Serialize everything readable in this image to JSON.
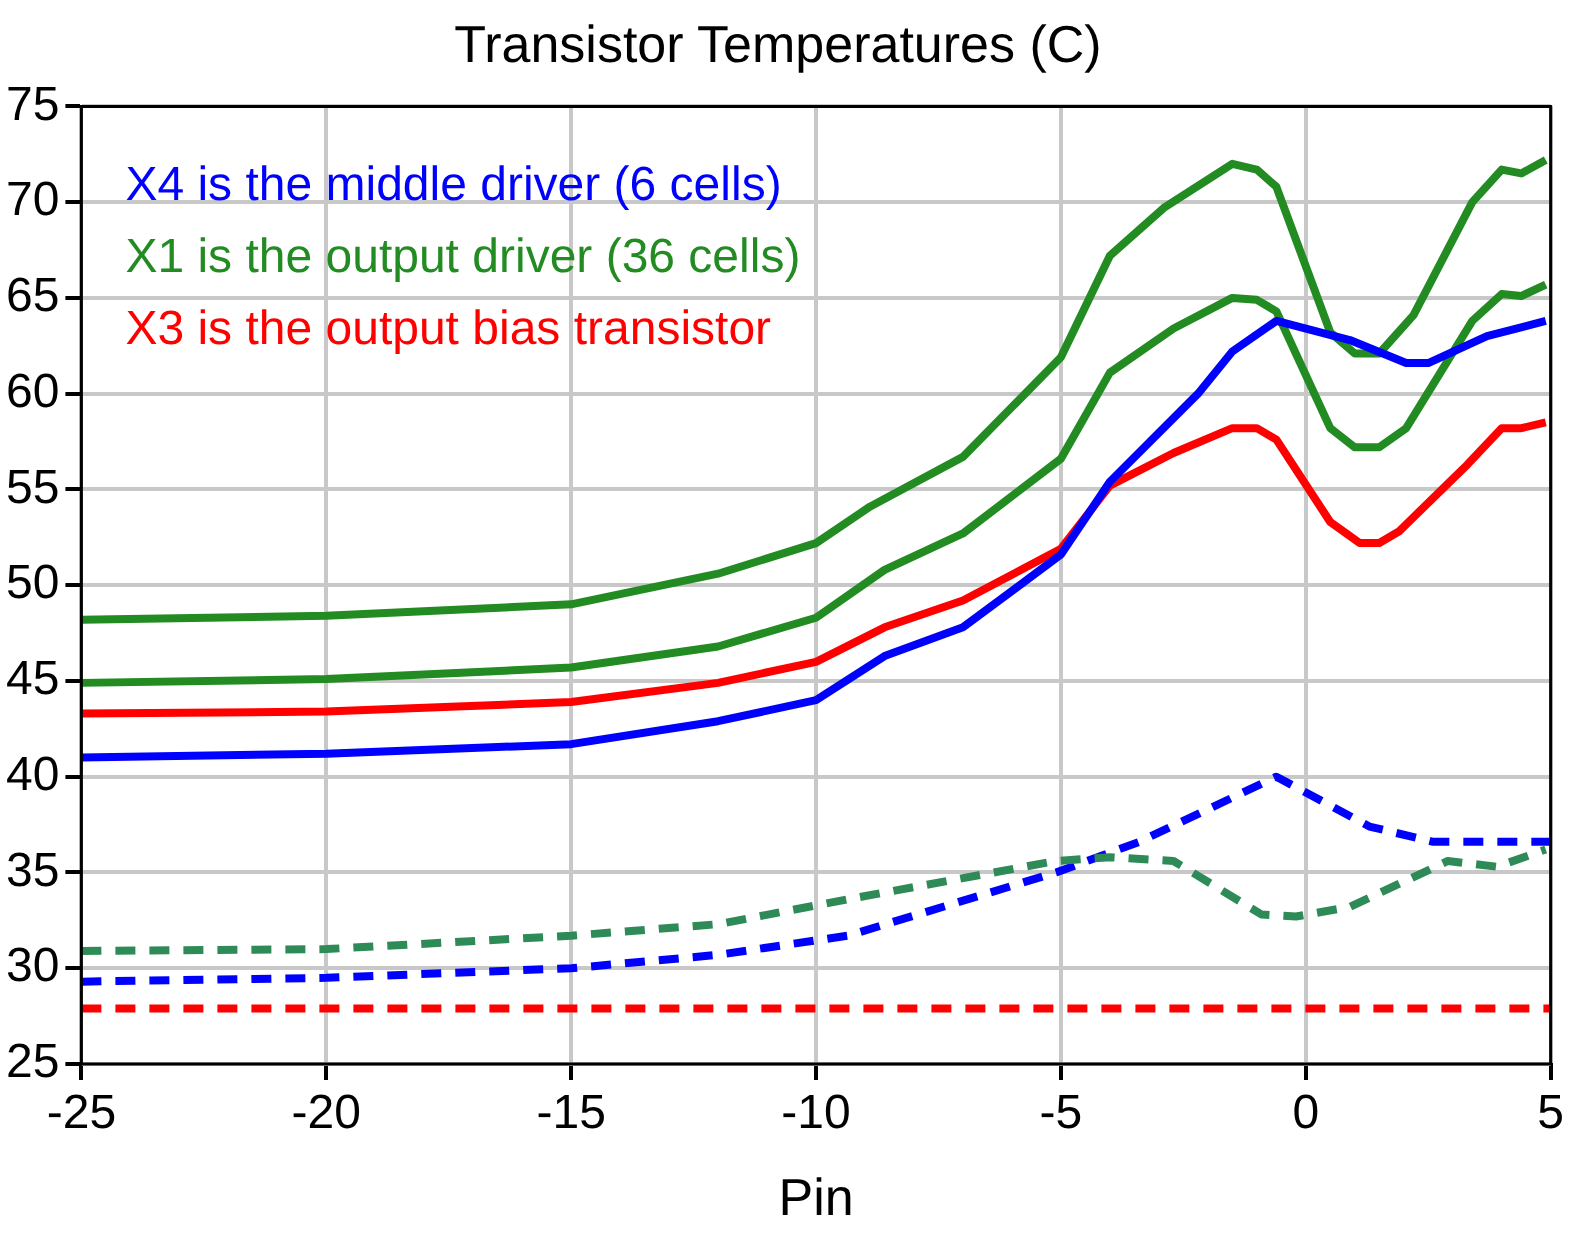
{
  "chart_data": {
    "type": "line",
    "title": "Transistor Temperatures (C)",
    "xlabel": "Pin",
    "xlim": [
      -25,
      5
    ],
    "xticks": [
      -25,
      -20,
      -15,
      -10,
      -5,
      0,
      5
    ],
    "ylim": [
      25,
      75
    ],
    "yticks": [
      25,
      30,
      35,
      40,
      45,
      50,
      55,
      60,
      65,
      70,
      75
    ],
    "grid": true,
    "legend": "top left",
    "marker": "none",
    "line_style": "solid",
    "series": [
      {
        "name": "X4 is the middle driver (6 cells)",
        "color": "#0000ff",
        "x": [
          -25,
          -20,
          -15,
          -12,
          -10,
          -8.6,
          -7,
          -5,
          -4,
          -2.2,
          -1.5,
          -0.6,
          0.9,
          2.05,
          2.5,
          3.7,
          4.9
        ],
        "values": [
          41.0,
          41.2,
          41.7,
          42.9,
          44.0,
          46.3,
          47.8,
          51.6,
          55.4,
          60,
          62.2,
          63.8,
          62.8,
          61.6,
          61.6,
          63,
          63.8
        ]
      },
      {
        "name": "X1 is the output driver (36 cells)",
        "color": "#228b22",
        "x": [
          -25,
          -20,
          -15,
          -12,
          -10,
          -8.9,
          -7,
          -5,
          -4,
          -2.9,
          -1.5,
          -1,
          -0.6,
          0.5,
          1,
          1.5,
          2.2,
          3.4,
          4,
          4.4,
          4.9
        ],
        "values": [
          48.2,
          48.4,
          49.0,
          50.6,
          52.2,
          54.1,
          56.7,
          61.9,
          67.2,
          69.7,
          72,
          71.7,
          70.8,
          63.2,
          62.1,
          62.1,
          64.1,
          70,
          71.7,
          71.5,
          72.2
        ]
      },
      {
        "name": "X3 is the output bias transistor",
        "color": "#ff0000",
        "x": [
          -25,
          -20,
          -15,
          -12,
          -10,
          -8.6,
          -7,
          -5,
          -4,
          -2.7,
          -1.5,
          -1,
          -0.6,
          0.5,
          1.1,
          1.5,
          1.9,
          3.3,
          4,
          4.4,
          4.9
        ],
        "values": [
          43.3,
          43.4,
          43.9,
          44.9,
          46.0,
          47.8,
          49.2,
          51.9,
          55.2,
          56.9,
          58.2,
          58.2,
          57.6,
          53.3,
          52.2,
          52.2,
          52.8,
          56.3,
          58.2,
          58.2,
          58.5
        ]
      },
      {
        "color": "#228b22",
        "x": [
          -25,
          -20,
          -15,
          -12,
          -10,
          -8.6,
          -7,
          -5,
          -4,
          -2.7,
          -1.5,
          -1,
          -0.6,
          0.5,
          1,
          1.5,
          2.05,
          3.4,
          4,
          4.4,
          4.9
        ],
        "values": [
          44.9,
          45.1,
          45.7,
          46.8,
          48.3,
          50.8,
          52.7,
          56.6,
          61.1,
          63.4,
          65,
          64.9,
          64.3,
          58.2,
          57.2,
          57.2,
          58.2,
          63.8,
          65.2,
          65.1,
          65.7
        ]
      },
      {
        "color": "#2e8b57",
        "line_style": "dashed",
        "x": [
          -25,
          -20,
          -15,
          -12,
          -9.35,
          -5.1,
          -4,
          -2.7,
          -0.9,
          -0.2,
          0.9,
          2.9,
          3.9,
          4.9
        ],
        "values": [
          30.9,
          31.0,
          31.7,
          32.3,
          33.6,
          35.6,
          35.8,
          35.6,
          32.8,
          32.7,
          33.2,
          35.6,
          35.3,
          36.2
        ]
      },
      {
        "color": "#0000ff",
        "line_style": "dashed",
        "x": [
          -25,
          -20,
          -15,
          -12,
          -9.35,
          -5.1,
          -3.4,
          -0.6,
          1.3,
          2.6,
          4.6,
          5
        ],
        "values": [
          29.3,
          29.5,
          30.0,
          30.7,
          31.7,
          35,
          36.6,
          40,
          37.4,
          36.6,
          36.6,
          36.6
        ]
      },
      {
        "color": "#ff0000",
        "line_style": "dashed",
        "x": [
          -25,
          5
        ],
        "values": [
          27.9,
          27.9
        ]
      }
    ]
  }
}
